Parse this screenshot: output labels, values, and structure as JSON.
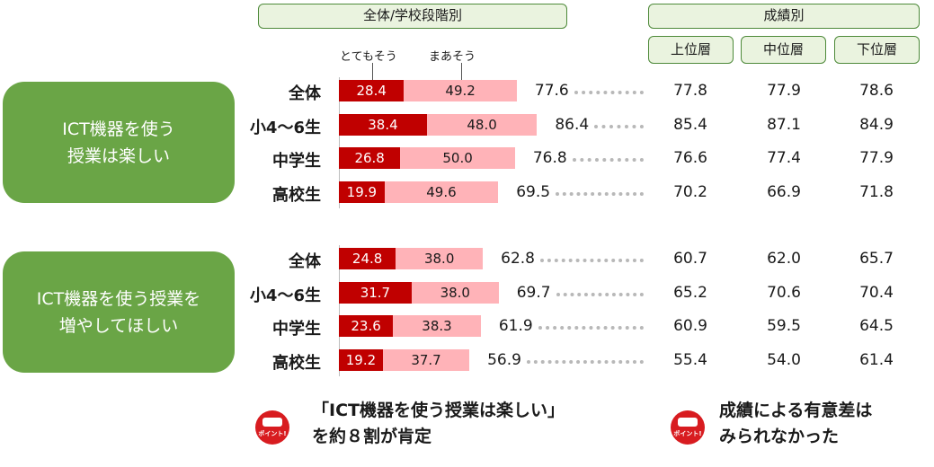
{
  "chart_data": {
    "type": "bar",
    "stacked": true,
    "orientation": "horizontal",
    "header_left": "全体/学校段階別",
    "header_right": "成績別",
    "legend": [
      "とてもそう",
      "まあそう"
    ],
    "grade_headers": [
      "上位層",
      "中位層",
      "下位層"
    ],
    "colors": {
      "とてもそう": "#c00000",
      "まあそう": "#ffb3b8",
      "label_box": "#6aa546"
    },
    "groups": [
      {
        "label": "ICT機器を使う\n授業は楽しい",
        "rows": [
          {
            "label": "全体",
            "very": "28.4",
            "somewhat": "49.2",
            "total": "77.6",
            "grades": [
              "77.8",
              "77.9",
              "78.6"
            ]
          },
          {
            "label": "小4～6生",
            "very": "38.4",
            "somewhat": "48.0",
            "total": "86.4",
            "grades": [
              "85.4",
              "87.1",
              "84.9"
            ]
          },
          {
            "label": "中学生",
            "very": "26.8",
            "somewhat": "50.0",
            "total": "76.8",
            "grades": [
              "76.6",
              "77.4",
              "77.9"
            ]
          },
          {
            "label": "高校生",
            "very": "19.9",
            "somewhat": "49.6",
            "total": "69.5",
            "grades": [
              "70.2",
              "66.9",
              "71.8"
            ]
          }
        ]
      },
      {
        "label": "ICT機器を使う授業を\n増やしてほしい",
        "rows": [
          {
            "label": "全体",
            "very": "24.8",
            "somewhat": "38.0",
            "total": "62.8",
            "grades": [
              "60.7",
              "62.0",
              "65.7"
            ]
          },
          {
            "label": "小4～6生",
            "very": "31.7",
            "somewhat": "38.0",
            "total": "69.7",
            "grades": [
              "65.2",
              "70.6",
              "70.4"
            ]
          },
          {
            "label": "中学生",
            "very": "23.6",
            "somewhat": "38.3",
            "total": "61.9",
            "grades": [
              "60.9",
              "59.5",
              "64.5"
            ]
          },
          {
            "label": "高校生",
            "very": "19.2",
            "somewhat": "37.7",
            "total": "56.9",
            "grades": [
              "55.4",
              "54.0",
              "61.4"
            ]
          }
        ]
      }
    ]
  },
  "notes": {
    "left": "「ICT機器を使う授業は楽しい」\nを約８割が肯定",
    "right": "成績による有意差は\nみられなかった",
    "badge_text": "ポイント!"
  }
}
